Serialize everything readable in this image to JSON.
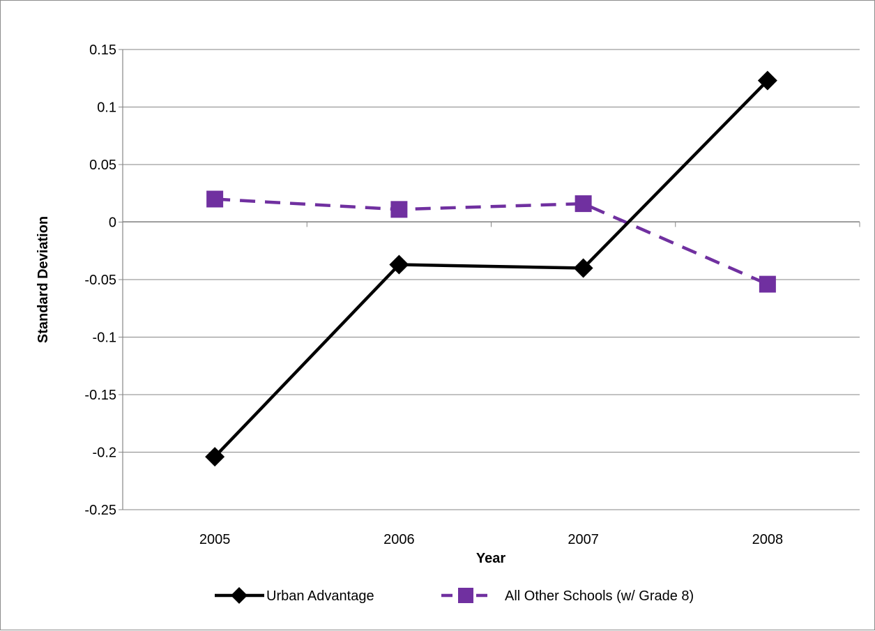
{
  "chart_data": {
    "type": "line",
    "title": "",
    "xlabel": "Year",
    "ylabel": "Standard Deviation",
    "categories": [
      "2005",
      "2006",
      "2007",
      "2008"
    ],
    "ylim": [
      -0.25,
      0.15
    ],
    "yticks": [
      0.15,
      0.1,
      0.05,
      0,
      -0.05,
      -0.1,
      -0.15,
      -0.2,
      -0.25
    ],
    "ytick_labels": [
      "0.15",
      "0.1",
      "0.05",
      "0",
      "-0.05",
      "-0.1",
      "-0.15",
      "-0.2",
      "-0.25"
    ],
    "grid": true,
    "legend_position": "bottom",
    "series": [
      {
        "name": "Urban Advantage",
        "values": [
          -0.204,
          -0.037,
          -0.04,
          0.123
        ],
        "color": "#000000",
        "line_style": "solid",
        "marker": "diamond"
      },
      {
        "name": "All Other Schools (w/ Grade 8)",
        "values": [
          0.02,
          0.011,
          0.016,
          -0.054
        ],
        "color": "#7030a0",
        "line_style": "dashed",
        "marker": "square"
      }
    ]
  }
}
